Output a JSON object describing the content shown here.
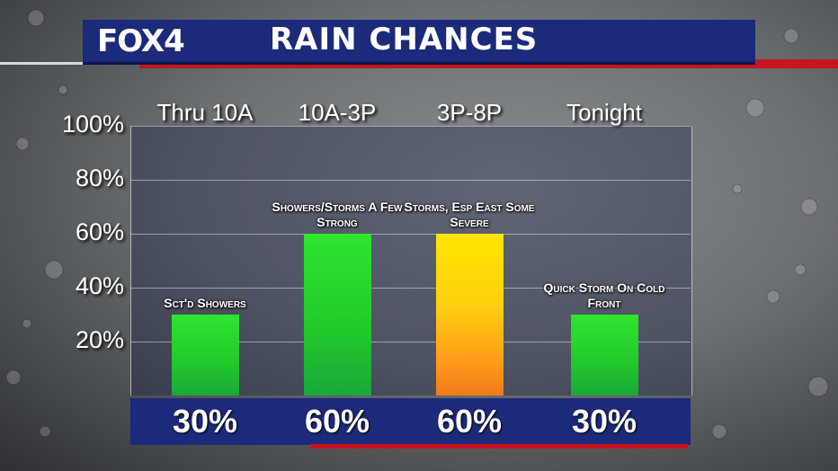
{
  "header": {
    "logo": "FOX4",
    "title": "RAIN CHANCES"
  },
  "colors": {
    "header_bg": "#1b2a7a",
    "accent_red": "#c8141e",
    "bar_green": "#2ee62e",
    "bar_yellow": "#ffe600"
  },
  "chart_data": {
    "type": "bar",
    "title": "RAIN CHANCES",
    "categories": [
      "Thru 10A",
      "10A-3P",
      "3P-8P",
      "Tonight"
    ],
    "values": [
      30,
      60,
      60,
      30
    ],
    "value_labels": [
      "30%",
      "60%",
      "60%",
      "30%"
    ],
    "annotations": [
      "Sct'd Showers",
      "Showers/Storms A Few Strong",
      "Storms, Esp East Some Severe",
      "Quick Storm On Cold Front"
    ],
    "bar_colors": [
      "green",
      "green",
      "yellow",
      "green"
    ],
    "yticks": [
      20,
      40,
      60,
      80,
      100
    ],
    "ytick_labels": [
      "20%",
      "40%",
      "60%",
      "80%",
      "100%"
    ],
    "ylim": [
      0,
      100
    ],
    "grid": true,
    "xlabel": "",
    "ylabel": ""
  }
}
